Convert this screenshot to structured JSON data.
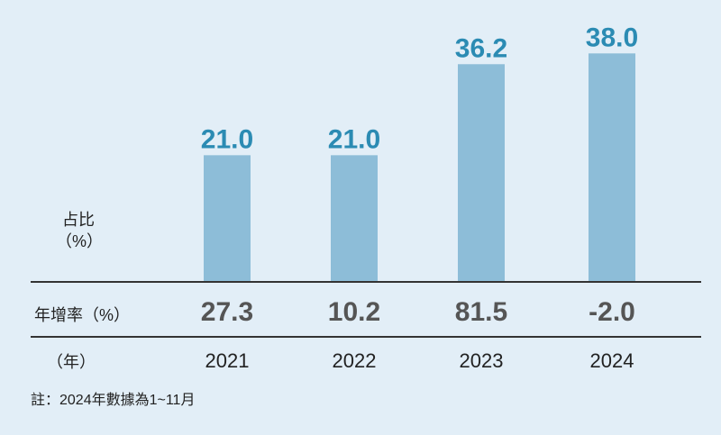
{
  "chart_data": {
    "type": "bar",
    "categories": [
      "2021",
      "2022",
      "2023",
      "2024"
    ],
    "values": [
      21.0,
      21.0,
      36.2,
      38.0
    ],
    "value_labels": [
      "21.0",
      "21.0",
      "36.2",
      "38.0"
    ],
    "growth_rates": [
      "27.3",
      "10.2",
      "81.5",
      "-2.0"
    ],
    "ylabel_line1": "占比",
    "ylabel_line2": "（%）",
    "growth_label": "年增率（%）",
    "xlabel": "（年）",
    "note": "註：2024年數據為1~11月",
    "ylim": [
      0,
      40
    ],
    "colors": {
      "bar": "#8dbdd8",
      "value_label": "#2b8bb3",
      "growth": "#555555",
      "background": "#e2eef7"
    }
  }
}
